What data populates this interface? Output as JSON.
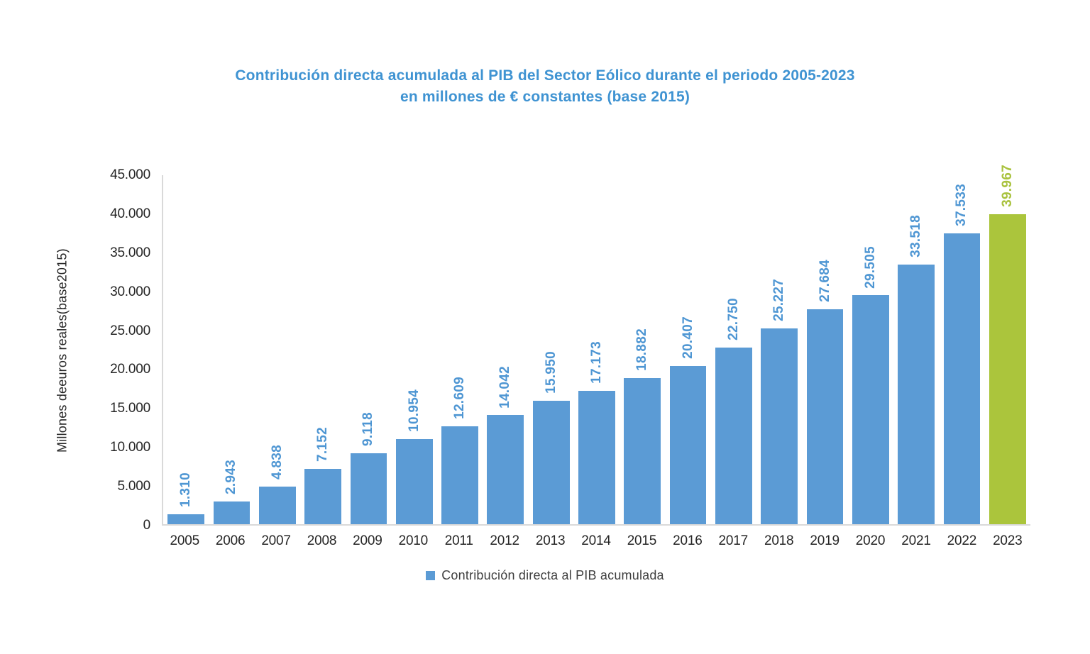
{
  "title": {
    "line1": "Contribución directa acumulada al PIB del Sector Eólico durante el periodo 2005-2023",
    "line2": "en millones de € constantes (base 2015)"
  },
  "legend": {
    "label": "Contribución directa al PIB acumulada"
  },
  "chart_data": {
    "type": "bar",
    "title": "Contribución directa acumulada al PIB del Sector Eólico durante el periodo 2005-2023 en millones de € constantes (base 2015)",
    "xlabel": "",
    "ylabel": "Millones deeuros reales(base2015)",
    "categories": [
      "2005",
      "2006",
      "2007",
      "2008",
      "2009",
      "2010",
      "2011",
      "2012",
      "2013",
      "2014",
      "2015",
      "2016",
      "2017",
      "2018",
      "2019",
      "2020",
      "2021",
      "2022",
      "2023"
    ],
    "values": [
      1310,
      2943,
      4838,
      7152,
      9118,
      10954,
      12609,
      14042,
      15950,
      17173,
      18882,
      20407,
      22750,
      25227,
      27684,
      29505,
      33518,
      37533,
      39967
    ],
    "value_labels": [
      "1.310",
      "2.943",
      "4.838",
      "7.152",
      "9.118",
      "10.954",
      "12.609",
      "14.042",
      "15.950",
      "17.173",
      "18.882",
      "20.407",
      "22.750",
      "25.227",
      "27.684",
      "29.505",
      "33.518",
      "37.533",
      "39.967"
    ],
    "ylim": [
      0,
      45000
    ],
    "ytick_step": 5000,
    "ytick_labels": [
      "0",
      "5.000",
      "10.000",
      "15.000",
      "20.000",
      "25.000",
      "30.000",
      "35.000",
      "40.000",
      "45.000"
    ],
    "grid": false,
    "legend_position": "bottom",
    "series_name": "Contribución directa al PIB acumulada",
    "highlight_index": 18,
    "colors": {
      "bar": "#5B9BD5",
      "bar_highlight": "#ABC53C",
      "value_label": "#4E96D3",
      "value_label_highlight": "#A9C23D",
      "title_text": "#3F93D2",
      "axis_line": "#D9D9D9",
      "tick_text": "#262626",
      "legend_text": "#3F3F3F"
    }
  }
}
